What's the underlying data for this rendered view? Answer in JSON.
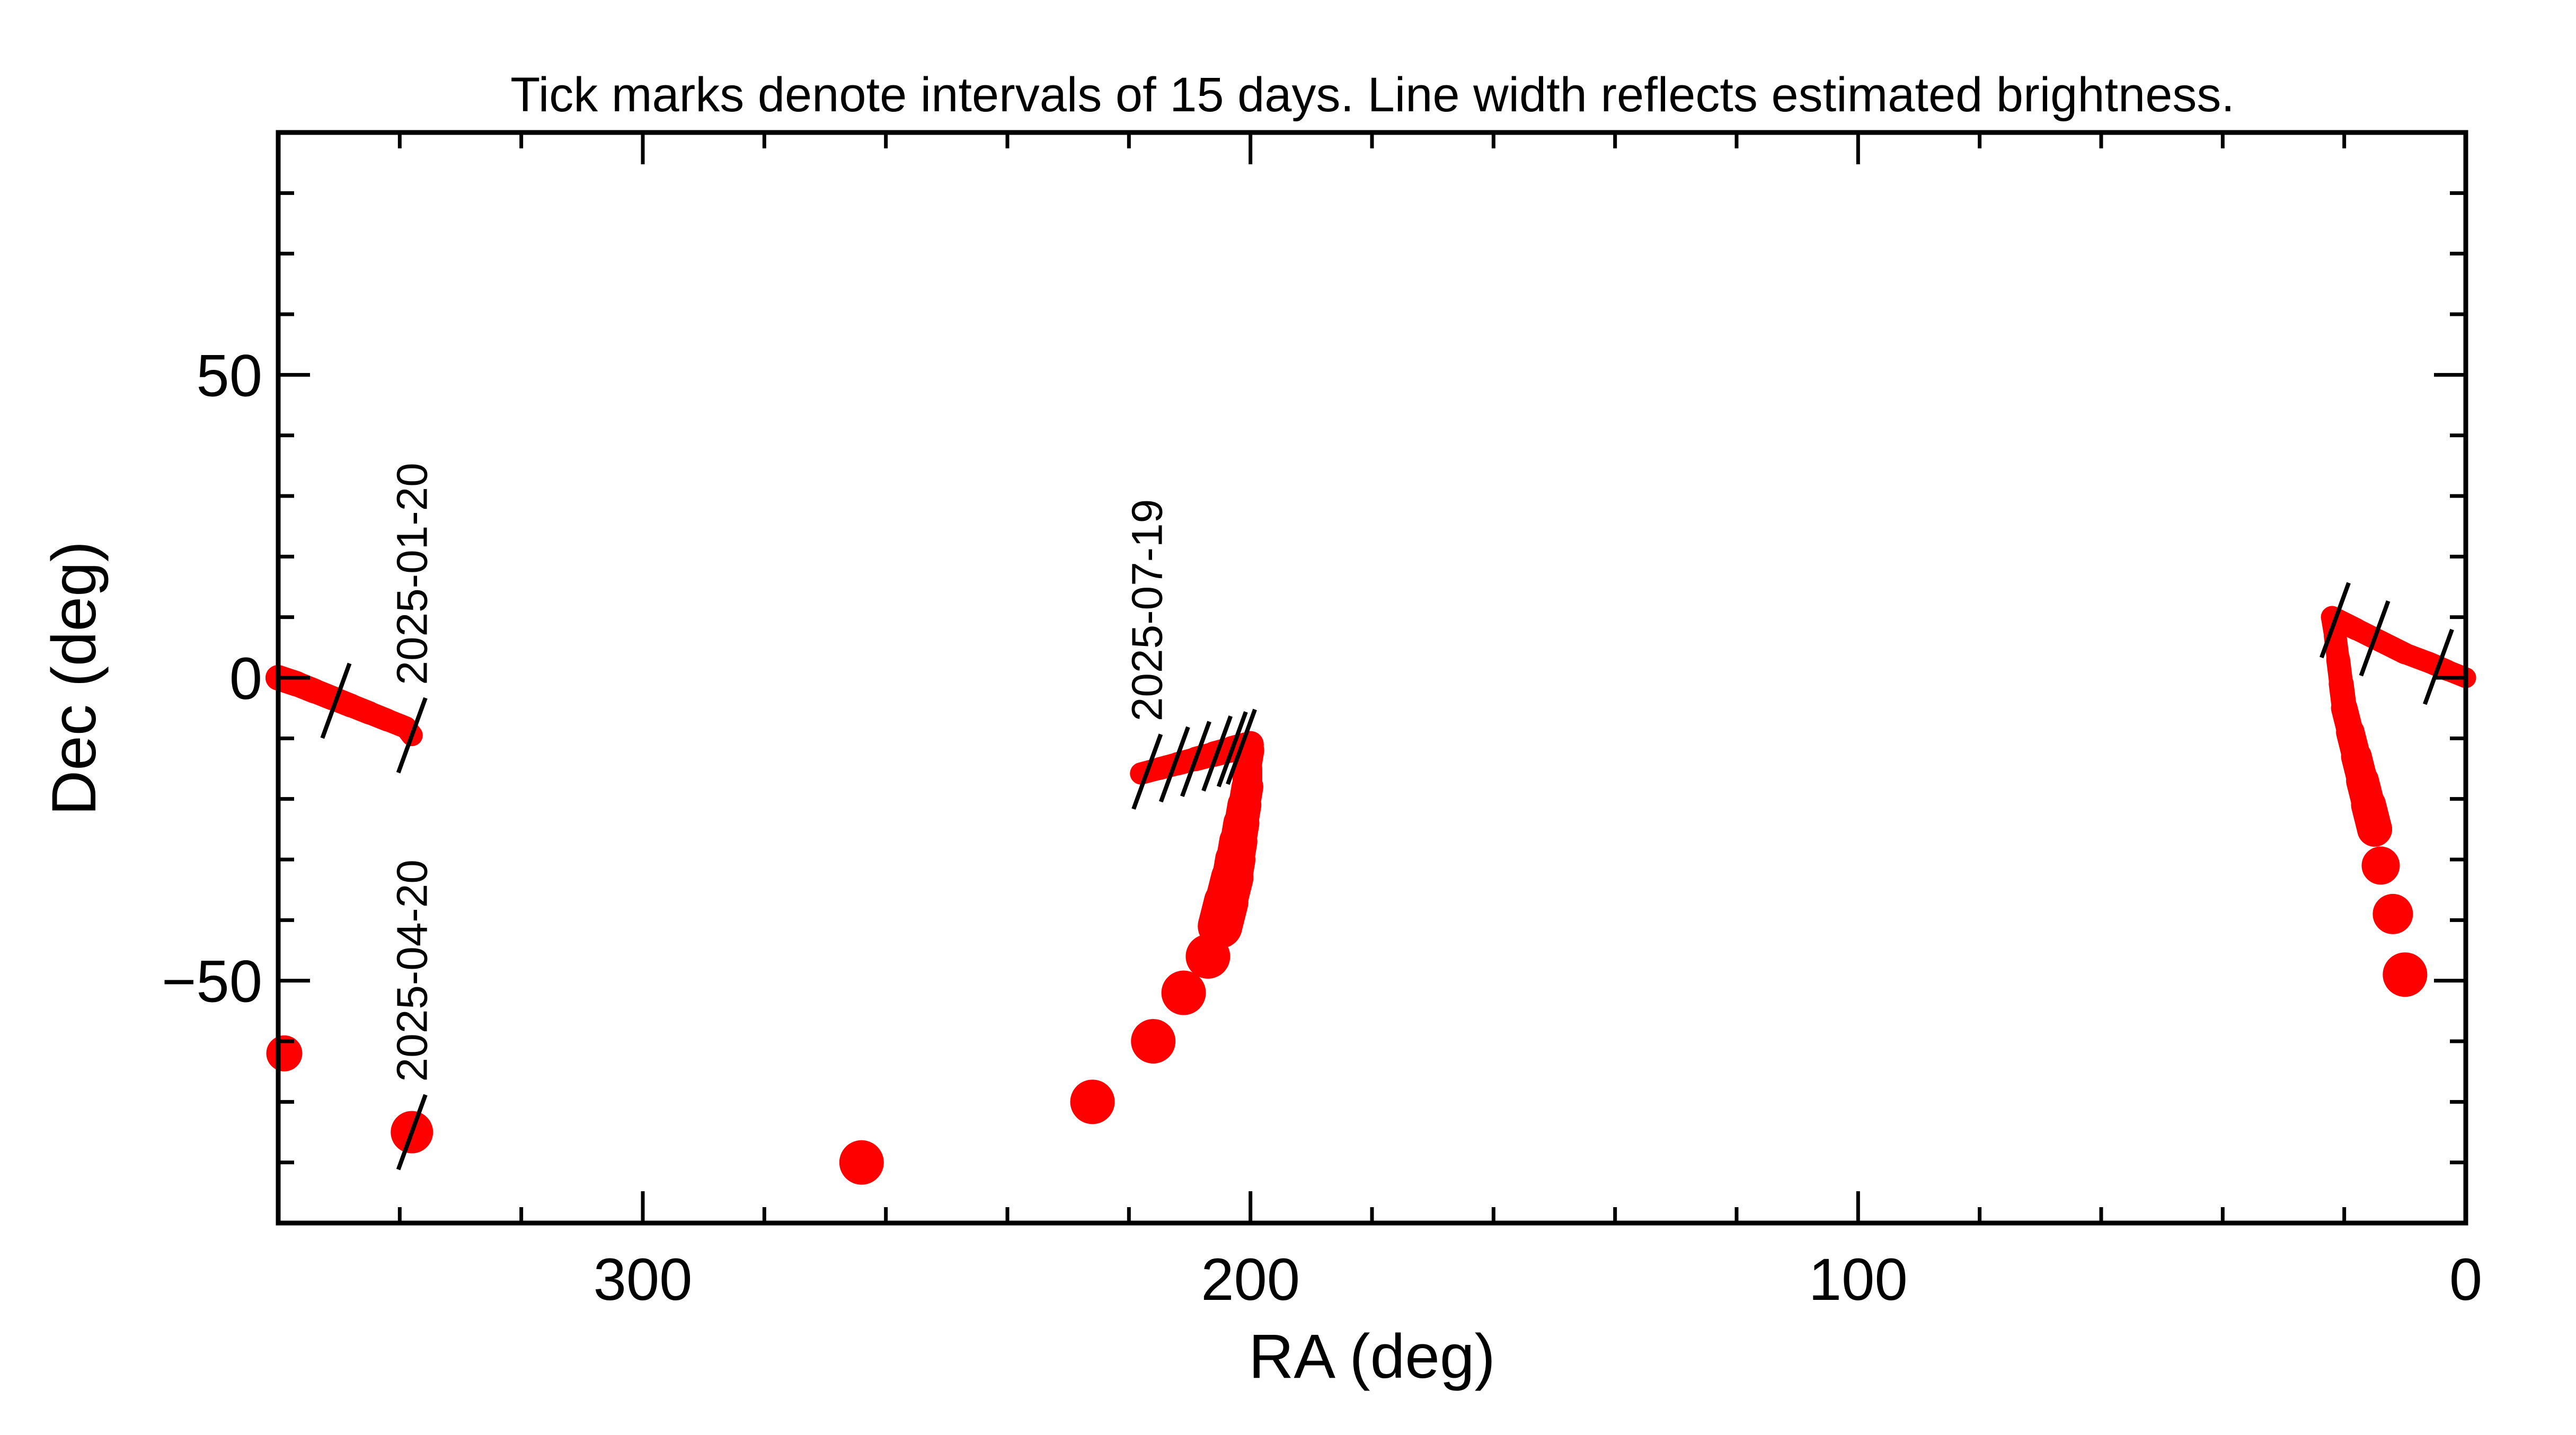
{
  "chart_data": {
    "type": "line",
    "title": "Tick marks denote intervals of 15 days.  Line width reflects estimated brightness.",
    "xlabel": "RA (deg)",
    "ylabel": "Dec (deg)",
    "xlim": [
      360,
      0
    ],
    "ylim": [
      -90,
      90
    ],
    "x_ticks": [
      300,
      200,
      100,
      0
    ],
    "y_ticks": [
      50,
      0,
      -50
    ],
    "x_tick_labels": [
      "300",
      "200",
      "100",
      "0"
    ],
    "y_tick_labels": [
      "50",
      "0",
      "−50"
    ],
    "line_color": "#ff0000",
    "tick_mark_color": "#000000",
    "series": [
      {
        "points": [
          [
            360,
            0
          ],
          [
            357,
            -1
          ],
          [
            354,
            -2.2
          ],
          [
            351,
            -3.4
          ],
          [
            348,
            -4.6
          ],
          [
            345,
            -5.8
          ],
          [
            342,
            -7
          ],
          [
            339,
            -8.2
          ],
          [
            338,
            -9.5
          ]
        ],
        "widths": [
          48,
          47,
          46,
          45,
          44,
          43,
          42,
          41,
          40
        ]
      },
      {
        "points": [
          [
            338,
            -75
          ]
        ],
        "widths": [
          80
        ]
      },
      {
        "points": [
          [
            359,
            -62
          ]
        ],
        "widths": [
          68
        ]
      },
      {
        "points": [
          [
            264,
            -80
          ]
        ],
        "widths": [
          84
        ]
      },
      {
        "points": [
          [
            226,
            -70
          ]
        ],
        "widths": [
          84
        ]
      },
      {
        "points": [
          [
            216,
            -60
          ]
        ],
        "widths": [
          84
        ]
      },
      {
        "points": [
          [
            211,
            -52
          ]
        ],
        "widths": [
          84
        ]
      },
      {
        "points": [
          [
            207,
            -46
          ]
        ],
        "widths": [
          84
        ]
      },
      {
        "points": [
          [
            205,
            -41
          ],
          [
            204,
            -37
          ],
          [
            203,
            -33
          ],
          [
            202.5,
            -30
          ],
          [
            202,
            -27
          ],
          [
            201.5,
            -24
          ],
          [
            201,
            -21
          ],
          [
            200.5,
            -18
          ],
          [
            200.5,
            -15
          ],
          [
            200,
            -12
          ],
          [
            200,
            -11
          ]
        ],
        "widths": [
          84,
          80,
          76,
          72,
          68,
          64,
          60,
          56,
          52,
          50,
          50
        ]
      },
      {
        "points": [
          [
            200,
            -11
          ],
          [
            203,
            -11.8
          ],
          [
            206,
            -12.6
          ],
          [
            209,
            -13.4
          ],
          [
            212,
            -14.2
          ],
          [
            215,
            -15
          ],
          [
            218,
            -15.8
          ]
        ],
        "widths": [
          50,
          48,
          46,
          44,
          43,
          42,
          41
        ]
      },
      {
        "points": [
          [
            10,
            -49
          ]
        ],
        "widths": [
          84
        ]
      },
      {
        "points": [
          [
            12,
            -39
          ]
        ],
        "widths": [
          76
        ]
      },
      {
        "points": [
          [
            14,
            -31
          ]
        ],
        "widths": [
          72
        ]
      },
      {
        "points": [
          [
            15,
            -25
          ],
          [
            16,
            -21
          ],
          [
            17,
            -17
          ],
          [
            18,
            -13
          ],
          [
            19,
            -9
          ],
          [
            20,
            -5
          ],
          [
            20.5,
            -1
          ],
          [
            21,
            3
          ],
          [
            21.5,
            7
          ],
          [
            22,
            10
          ]
        ],
        "widths": [
          66,
          62,
          58,
          54,
          50,
          47,
          45,
          43,
          42,
          42
        ]
      },
      {
        "points": [
          [
            22,
            10
          ],
          [
            18,
            8
          ],
          [
            14,
            6
          ],
          [
            10,
            4
          ],
          [
            6,
            2.5
          ],
          [
            3,
            1.2
          ],
          [
            0,
            0
          ]
        ],
        "widths": [
          42,
          41,
          41,
          40,
          40,
          39,
          39
        ]
      }
    ],
    "interval_ticks": [
      {
        "ra": 350.5,
        "dec": -3.8,
        "label": ""
      },
      {
        "ra": 338,
        "dec": -9.5,
        "label": "2025-01-20"
      },
      {
        "ra": 338,
        "dec": -75,
        "label": "2025-04-20"
      },
      {
        "ra": 217,
        "dec": -15.5,
        "label": "2025-07-19"
      },
      {
        "ra": 212.5,
        "dec": -14.3,
        "label": ""
      },
      {
        "ra": 209,
        "dec": -13.4,
        "label": ""
      },
      {
        "ra": 205.5,
        "dec": -12.5,
        "label": ""
      },
      {
        "ra": 203,
        "dec": -11.8,
        "label": ""
      },
      {
        "ra": 201.5,
        "dec": -11.4,
        "label": ""
      },
      {
        "ra": 21.5,
        "dec": 9.5,
        "label": ""
      },
      {
        "ra": 15,
        "dec": 6.5,
        "label": ""
      },
      {
        "ra": 4.5,
        "dec": 1.8,
        "label": ""
      }
    ]
  }
}
